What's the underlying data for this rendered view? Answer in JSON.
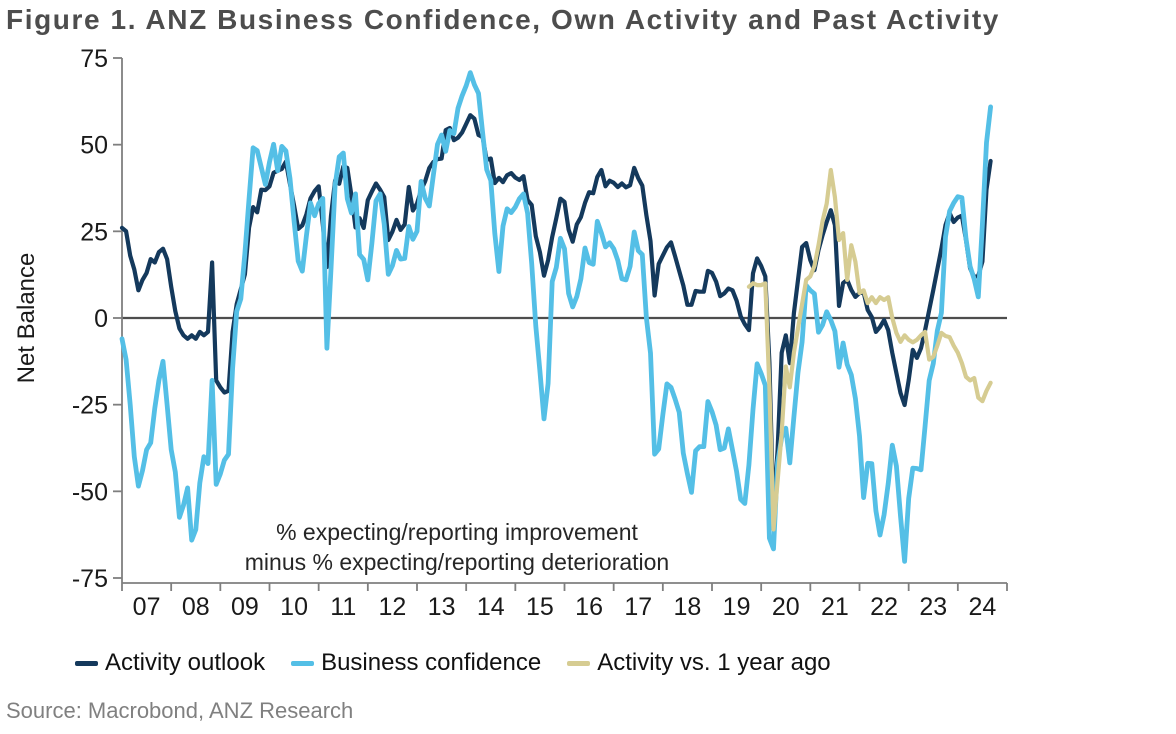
{
  "title": "Figure 1.  ANZ Business Confidence, Own Activity and Past Activity",
  "source": "Source: Macrobond, ANZ Research",
  "chart_data": {
    "type": "line",
    "ylabel": "Net Balance",
    "ylim": [
      -75,
      75
    ],
    "y_ticks": [
      75,
      50,
      25,
      0,
      -25,
      -50,
      -75
    ],
    "x_tick_labels": [
      "07",
      "08",
      "09",
      "10",
      "11",
      "12",
      "13",
      "14",
      "15",
      "16",
      "17",
      "18",
      "19",
      "20",
      "21",
      "22",
      "23",
      "24"
    ],
    "x_start_year": 2007,
    "x_end_year": 2025,
    "grid": false,
    "zero_line": true,
    "legend_position": "bottom",
    "annotation": [
      "% expecting/reporting improvement",
      "minus % expecting/reporting deterioration"
    ],
    "colors": {
      "axis": "#7f7f7f",
      "zero_line": "#4d4d4d",
      "tick_text": "#1a1a1a",
      "annotation_text": "#262626"
    },
    "series": [
      {
        "name": "Activity outlook",
        "color": "#14395c",
        "width": 4.2,
        "start": "2007-01",
        "values": [
          26,
          25,
          18,
          14,
          8,
          11,
          13,
          17,
          16,
          19,
          20,
          17,
          9,
          2,
          -3,
          -5,
          -6,
          -5,
          -6,
          -4,
          -5,
          -4,
          16,
          -18,
          -20,
          -21.5,
          -21,
          -4,
          4,
          8.3,
          12.6,
          26,
          32,
          30.5,
          37,
          36.9,
          38,
          41.9,
          42.5,
          43,
          45.1,
          38.6,
          32.4,
          25.7,
          26.7,
          29.9,
          34.5,
          36.6,
          38,
          27,
          14.7,
          29.5,
          39.7,
          38.7,
          43.7,
          43.3,
          35.4,
          26.1,
          28.8,
          26,
          34,
          36.5,
          38.8,
          37,
          34.9,
          22.5,
          24.9,
          28.3,
          25.4,
          27,
          37.8,
          31,
          33,
          36.9,
          39.5,
          43.3,
          45,
          45.8,
          46,
          54.2,
          54.8,
          51.3,
          52,
          53.5,
          56,
          58.5,
          57.5,
          52.8,
          52.2,
          45.6,
          46,
          38.9,
          40.4,
          39.2,
          41.2,
          41.8,
          40.5,
          39.8,
          40.9,
          34,
          32.6,
          23.6,
          19,
          12.2,
          16.7,
          23.4,
          28.8,
          34.4,
          33.5,
          25.5,
          22,
          27,
          29.1,
          33.2,
          36.3,
          36,
          40.7,
          42.7,
          38,
          39.6,
          39,
          37.8,
          38.8,
          37.7,
          38.3,
          43.3,
          40.3,
          38.2,
          29.6,
          22.2,
          6.5,
          15.6,
          18,
          20.4,
          21.8,
          17.8,
          13.6,
          9.4,
          3.8,
          3.8,
          7.8,
          7.6,
          7.6,
          13.6,
          13,
          10.5,
          6.3,
          7.1,
          8.5,
          8,
          5,
          0.5,
          -1.8,
          -3.5,
          12.9,
          17.2,
          15,
          12,
          -12.8,
          -57,
          -38,
          -10,
          -5,
          -13,
          1.4,
          11,
          20.5,
          21.6,
          16.7,
          13.8,
          19.6,
          23.9,
          27.7,
          31.1,
          26.8,
          3.5,
          10.1,
          11,
          8.1,
          6.1,
          7.2,
          7.5,
          2.3,
          0.3,
          -4,
          -2.6,
          -0.6,
          -3.5,
          -10.1,
          -15.9,
          -21.6,
          -25.1,
          -17.9,
          -9.2,
          -11.5,
          -8.7,
          -3.5,
          2.3,
          8.1,
          14,
          20,
          26.8,
          30.3,
          27.7,
          29,
          29.5,
          22.5,
          14.3,
          11.8,
          12.2,
          16.3,
          37.1,
          45.3
        ]
      },
      {
        "name": "Business confidence",
        "color": "#54bfe6",
        "width": 4.8,
        "start": "2007-01",
        "values": [
          -6,
          -12,
          -25,
          -40,
          -48.5,
          -44,
          -38,
          -36,
          -26,
          -18,
          -12.5,
          -25,
          -38,
          -44.4,
          -57.5,
          -54,
          -49,
          -64.1,
          -61,
          -47.6,
          -40,
          -42,
          -18,
          -48,
          -45,
          -41,
          -39.3,
          -14.5,
          1.9,
          5.5,
          18.7,
          34.2,
          49.1,
          48.3,
          43.4,
          38.5,
          45,
          50.1,
          42.5,
          49.5,
          48.2,
          40.2,
          27.9,
          16.4,
          13.5,
          23.7,
          33.2,
          29.5,
          33,
          34.5,
          -8.7,
          14.2,
          38.3,
          46.5,
          47.6,
          34.4,
          30.3,
          35.8,
          18.3,
          16.9,
          11,
          21.6,
          33.8,
          35.8,
          27.1,
          12.6,
          15.1,
          19.5,
          17,
          17.2,
          26.4,
          22.7,
          25,
          39.4,
          34.6,
          32.3,
          41.3,
          50.1,
          52.8,
          48.1,
          54.1,
          53.2,
          60.5,
          64.1,
          67,
          70.8,
          67.3,
          64.8,
          53.5,
          42.8,
          39.7,
          24.4,
          13.4,
          26.5,
          31.5,
          30.4,
          32,
          34.4,
          35.8,
          30.2,
          15.7,
          -2.3,
          -15.3,
          -29.1,
          -18.9,
          10.5,
          14.6,
          23,
          20,
          7.1,
          3.2,
          6.2,
          11.3,
          20.2,
          16,
          15.5,
          27.9,
          24.5,
          20.5,
          21.7,
          20,
          16.6,
          11.3,
          11,
          14.9,
          24.8,
          19.4,
          18.3,
          0,
          -10.1,
          -39.3,
          -37.8,
          -28,
          -19,
          -20,
          -23.4,
          -27.2,
          -39,
          -44.9,
          -50.3,
          -38.3,
          -37.1,
          -37.1,
          -24.1,
          -27,
          -30.9,
          -38,
          -37.5,
          -32,
          -38.1,
          -44.3,
          -52.3,
          -53.5,
          -42.4,
          -26.4,
          -13.2,
          -16,
          -19.4,
          -63.5,
          -66.6,
          -41.8,
          -34.4,
          -31.8,
          -41.8,
          -28.5,
          -15.7,
          -6.9,
          9.4,
          8,
          7,
          -4.1,
          -2,
          1.8,
          -0.6,
          -3.8,
          -14.2,
          -7.2,
          -13.4,
          -16.4,
          -23.2,
          -34,
          -51.8,
          -41.9,
          -42,
          -55.6,
          -62.6,
          -56.7,
          -47.8,
          -36.7,
          -42.7,
          -57.1,
          -70.2,
          -52,
          -43.3,
          -43.4,
          -43.8,
          -31.1,
          -18,
          -13.1,
          -3.7,
          1.5,
          23.4,
          30.8,
          33.2,
          35,
          34.7,
          22.9,
          14.9,
          11.2,
          6.1,
          27.1,
          50.6,
          60.9
        ]
      },
      {
        "name": "Activity vs. 1 year ago",
        "color": "#d6cc92",
        "width": 4.2,
        "start": "2019-10",
        "values": [
          9,
          10,
          9.5,
          9.5,
          10,
          -20,
          -61,
          -47,
          -33,
          -14,
          -20,
          -10,
          -3,
          4,
          11,
          12,
          15,
          21,
          28,
          33,
          42.7,
          34.9,
          22.5,
          24.5,
          11,
          21,
          16.2,
          7.2,
          8,
          4.3,
          6,
          4.3,
          6,
          5.2,
          6,
          0,
          -4.3,
          -6.9,
          -5,
          -6.3,
          -7,
          -6.3,
          -5,
          -4,
          -12,
          -11.2,
          -8,
          -4.3,
          -5.2,
          -5.5,
          -8,
          -10,
          -13,
          -17,
          -18,
          -17.3,
          -23,
          -24,
          -21,
          -18.7
        ]
      }
    ]
  }
}
